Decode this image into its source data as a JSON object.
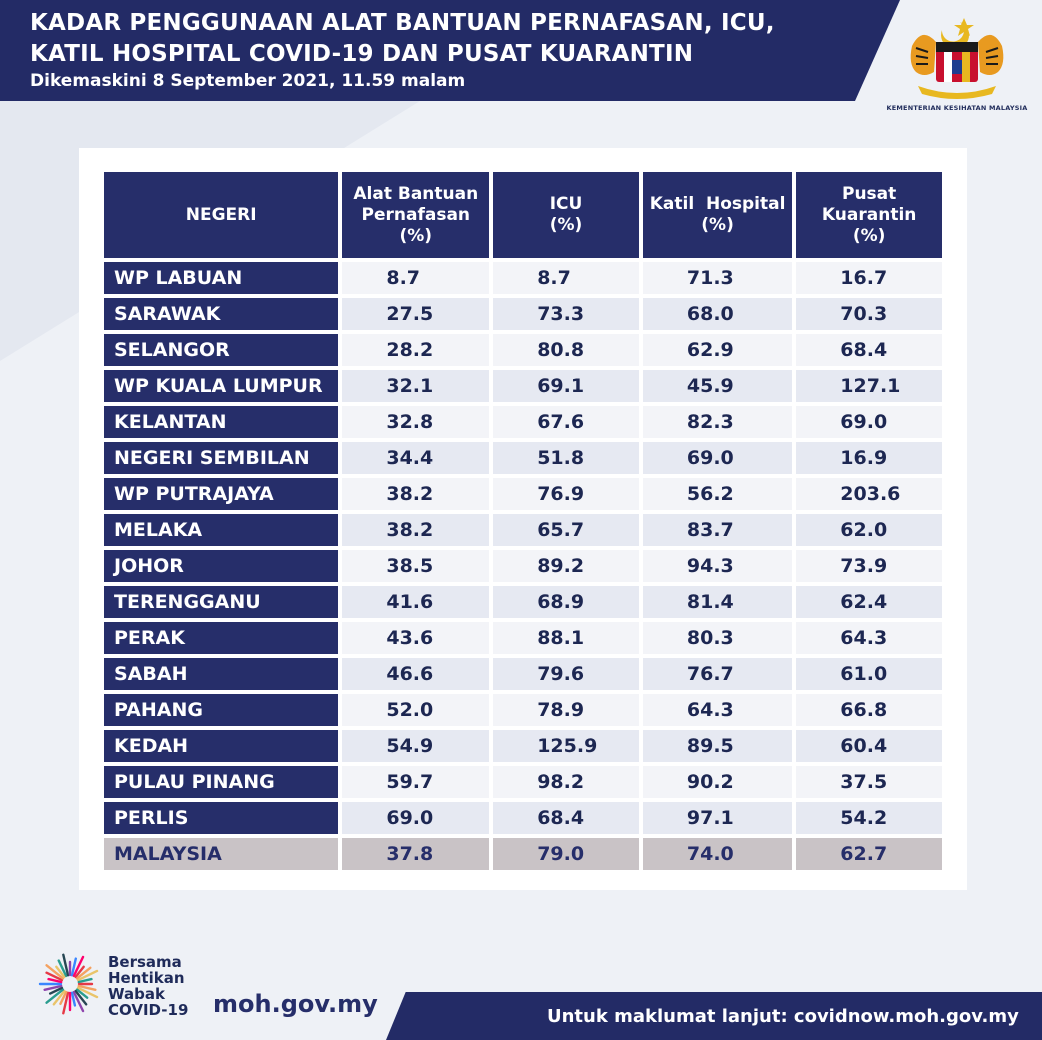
{
  "header": {
    "title_line1": "KADAR PENGGUNAAN ALAT BANTUAN PERNAFASAN, ICU,",
    "title_line2": "KATIL HOSPITAL COVID-19 DAN PUSAT KUARANTIN",
    "updated": "Dikemaskini 8 September 2021, 11.59 malam",
    "logo_caption": "KEMENTERIAN KESIHATAN MALAYSIA",
    "logo_icon": "malaysia-coat-of-arms-icon"
  },
  "table": {
    "headers": {
      "state": "NEGERI",
      "ventilator": [
        "Alat Bantuan",
        "Pernafasan",
        "(%)"
      ],
      "icu": [
        "ICU",
        "(%)"
      ],
      "hospital": [
        "Katil  Hospital",
        "(%)"
      ],
      "quarantine": [
        "Pusat",
        "Kuarantin",
        "(%)"
      ]
    },
    "rows": [
      {
        "state": "WP LABUAN",
        "ventilator": "8.7",
        "icu": "8.7",
        "hospital": "71.3",
        "quarantine": "16.7"
      },
      {
        "state": "SARAWAK",
        "ventilator": "27.5",
        "icu": "73.3",
        "hospital": "68.0",
        "quarantine": "70.3"
      },
      {
        "state": "SELANGOR",
        "ventilator": "28.2",
        "icu": "80.8",
        "hospital": "62.9",
        "quarantine": "68.4"
      },
      {
        "state": "WP KUALA LUMPUR",
        "ventilator": "32.1",
        "icu": "69.1",
        "hospital": "45.9",
        "quarantine": "127.1"
      },
      {
        "state": "KELANTAN",
        "ventilator": "32.8",
        "icu": "67.6",
        "hospital": "82.3",
        "quarantine": "69.0"
      },
      {
        "state": "NEGERI SEMBILAN",
        "ventilator": "34.4",
        "icu": "51.8",
        "hospital": "69.0",
        "quarantine": "16.9"
      },
      {
        "state": "WP PUTRAJAYA",
        "ventilator": "38.2",
        "icu": "76.9",
        "hospital": "56.2",
        "quarantine": "203.6"
      },
      {
        "state": "MELAKA",
        "ventilator": "38.2",
        "icu": "65.7",
        "hospital": "83.7",
        "quarantine": "62.0"
      },
      {
        "state": "JOHOR",
        "ventilator": "38.5",
        "icu": "89.2",
        "hospital": "94.3",
        "quarantine": "73.9"
      },
      {
        "state": "TERENGGANU",
        "ventilator": "41.6",
        "icu": "68.9",
        "hospital": "81.4",
        "quarantine": "62.4"
      },
      {
        "state": "PERAK",
        "ventilator": "43.6",
        "icu": "88.1",
        "hospital": "80.3",
        "quarantine": "64.3"
      },
      {
        "state": "SABAH",
        "ventilator": "46.6",
        "icu": "79.6",
        "hospital": "76.7",
        "quarantine": "61.0"
      },
      {
        "state": "PAHANG",
        "ventilator": "52.0",
        "icu": "78.9",
        "hospital": "64.3",
        "quarantine": "66.8"
      },
      {
        "state": "KEDAH",
        "ventilator": "54.9",
        "icu": "125.9",
        "hospital": "89.5",
        "quarantine": "60.4"
      },
      {
        "state": "PULAU PINANG",
        "ventilator": "59.7",
        "icu": "98.2",
        "hospital": "90.2",
        "quarantine": "37.5"
      },
      {
        "state": "PERLIS",
        "ventilator": "69.0",
        "icu": "68.4",
        "hospital": "97.1",
        "quarantine": "54.2"
      }
    ],
    "total": {
      "state": "MALAYSIA",
      "ventilator": "37.8",
      "icu": "79.0",
      "hospital": "74.0",
      "quarantine": "62.7"
    }
  },
  "footer": {
    "slogan": [
      "Bersama",
      "Hentikan",
      "Wabak",
      "COVID-19"
    ],
    "slogan_icon": "starburst-logo-icon",
    "site": "moh.gov.my",
    "more_info": "Untuk maklumat lanjut: covidnow.moh.gov.my"
  }
}
